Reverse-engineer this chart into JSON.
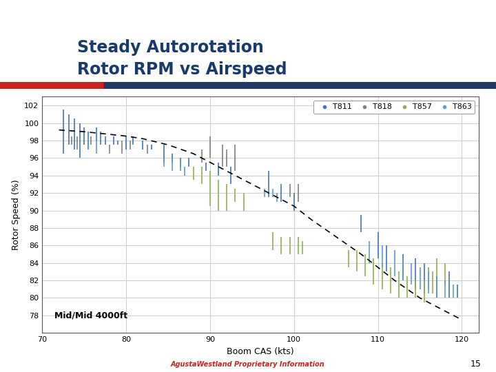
{
  "title_line1": "Steady Autorotation",
  "title_line2": "Rotor RPM vs Airspeed",
  "xlabel": "Boom CAS (kts)",
  "ylabel": "Rotor Speed (%)",
  "xlim": [
    70,
    122
  ],
  "ylim": [
    76,
    103
  ],
  "xticks": [
    70,
    80,
    90,
    100,
    110,
    120
  ],
  "yticks": [
    78,
    80,
    82,
    84,
    86,
    88,
    90,
    92,
    94,
    96,
    98,
    100,
    102
  ],
  "annotation": "Mid/Mid 4000ft",
  "footer": "AgustaWestland Proprietary Information",
  "page_number": "15",
  "bg_color": "#ffffff",
  "plot_bg_color": "#ffffff",
  "grid_color": "#cccccc",
  "title_color": "#1a3a6b",
  "c_T811": "#4472c4",
  "c_T818": "#808080",
  "c_T857": "#8db04f",
  "c_T863": "#5b9bd5",
  "dashed_curve": {
    "x": [
      72,
      75,
      78,
      80,
      82,
      85,
      88,
      90,
      92,
      95,
      98,
      100,
      102,
      105,
      108,
      110,
      112,
      115,
      118,
      120
    ],
    "y": [
      99.2,
      99.0,
      98.7,
      98.5,
      98.2,
      97.5,
      96.5,
      95.5,
      94.5,
      93.0,
      91.5,
      90.5,
      89.0,
      87.0,
      85.0,
      83.5,
      82.0,
      80.0,
      78.5,
      77.5
    ]
  },
  "T811_data": [
    {
      "x": 72.5,
      "ymin": 96.5,
      "ymax": 101.5
    },
    {
      "x": 73.2,
      "ymin": 97.5,
      "ymax": 101.0
    },
    {
      "x": 73.8,
      "ymin": 97.0,
      "ymax": 100.5
    },
    {
      "x": 74.5,
      "ymin": 96.0,
      "ymax": 100.0
    },
    {
      "x": 75.0,
      "ymin": 97.5,
      "ymax": 99.5
    },
    {
      "x": 75.5,
      "ymin": 97.0,
      "ymax": 99.0
    },
    {
      "x": 76.5,
      "ymin": 98.0,
      "ymax": 99.5
    },
    {
      "x": 77.0,
      "ymin": 97.5,
      "ymax": 99.0
    },
    {
      "x": 77.5,
      "ymin": 97.5,
      "ymax": 98.5
    },
    {
      "x": 78.5,
      "ymin": 97.5,
      "ymax": 98.5
    },
    {
      "x": 79.0,
      "ymin": 97.5,
      "ymax": 98.0
    },
    {
      "x": 80.0,
      "ymin": 97.0,
      "ymax": 98.5
    },
    {
      "x": 80.8,
      "ymin": 97.5,
      "ymax": 98.5
    },
    {
      "x": 82.0,
      "ymin": 97.0,
      "ymax": 98.0
    },
    {
      "x": 83.0,
      "ymin": 97.0,
      "ymax": 97.5
    },
    {
      "x": 84.5,
      "ymin": 95.5,
      "ymax": 97.5
    },
    {
      "x": 85.5,
      "ymin": 95.5,
      "ymax": 96.5
    },
    {
      "x": 86.5,
      "ymin": 95.0,
      "ymax": 96.0
    },
    {
      "x": 87.5,
      "ymin": 95.0,
      "ymax": 96.0
    },
    {
      "x": 89.5,
      "ymin": 94.5,
      "ymax": 95.5
    },
    {
      "x": 91.0,
      "ymin": 94.0,
      "ymax": 95.5
    },
    {
      "x": 92.5,
      "ymin": 93.0,
      "ymax": 95.0
    },
    {
      "x": 97.0,
      "ymin": 91.5,
      "ymax": 94.5
    },
    {
      "x": 98.5,
      "ymin": 91.0,
      "ymax": 93.0
    },
    {
      "x": 100.0,
      "ymin": 90.0,
      "ymax": 92.0
    },
    {
      "x": 108.0,
      "ymin": 87.5,
      "ymax": 89.5
    },
    {
      "x": 110.0,
      "ymin": 84.5,
      "ymax": 87.5
    },
    {
      "x": 111.0,
      "ymin": 83.0,
      "ymax": 86.0
    },
    {
      "x": 113.0,
      "ymin": 82.0,
      "ymax": 85.0
    },
    {
      "x": 114.5,
      "ymin": 81.0,
      "ymax": 84.5
    },
    {
      "x": 115.5,
      "ymin": 80.5,
      "ymax": 84.0
    },
    {
      "x": 117.0,
      "ymin": 80.0,
      "ymax": 82.5
    },
    {
      "x": 118.5,
      "ymin": 80.0,
      "ymax": 83.0
    },
    {
      "x": 119.5,
      "ymin": 80.0,
      "ymax": 81.5
    }
  ],
  "T818_data": [
    {
      "x": 73.5,
      "ymin": 97.5,
      "ymax": 98.5
    },
    {
      "x": 74.2,
      "ymin": 97.0,
      "ymax": 98.5
    },
    {
      "x": 75.8,
      "ymin": 97.5,
      "ymax": 98.5
    },
    {
      "x": 78.0,
      "ymin": 96.5,
      "ymax": 97.5
    },
    {
      "x": 79.5,
      "ymin": 96.5,
      "ymax": 98.0
    },
    {
      "x": 80.5,
      "ymin": 97.0,
      "ymax": 98.0
    },
    {
      "x": 82.5,
      "ymin": 96.5,
      "ymax": 97.5
    },
    {
      "x": 89.0,
      "ymin": 95.5,
      "ymax": 97.0
    },
    {
      "x": 90.0,
      "ymin": 96.0,
      "ymax": 98.5
    },
    {
      "x": 91.5,
      "ymin": 95.0,
      "ymax": 97.5
    },
    {
      "x": 92.0,
      "ymin": 95.0,
      "ymax": 97.0
    },
    {
      "x": 93.0,
      "ymin": 94.5,
      "ymax": 97.5
    },
    {
      "x": 99.5,
      "ymin": 91.5,
      "ymax": 93.0
    },
    {
      "x": 100.5,
      "ymin": 91.0,
      "ymax": 93.0
    }
  ],
  "T857_data": [
    {
      "x": 88.0,
      "ymin": 93.5,
      "ymax": 95.0
    },
    {
      "x": 89.0,
      "ymin": 93.0,
      "ymax": 95.0
    },
    {
      "x": 90.0,
      "ymin": 90.5,
      "ymax": 94.5
    },
    {
      "x": 91.0,
      "ymin": 90.0,
      "ymax": 93.5
    },
    {
      "x": 92.0,
      "ymin": 90.0,
      "ymax": 93.0
    },
    {
      "x": 93.0,
      "ymin": 91.0,
      "ymax": 92.5
    },
    {
      "x": 94.0,
      "ymin": 90.0,
      "ymax": 92.0
    },
    {
      "x": 97.5,
      "ymin": 85.5,
      "ymax": 87.5
    },
    {
      "x": 98.5,
      "ymin": 85.0,
      "ymax": 87.0
    },
    {
      "x": 99.5,
      "ymin": 85.0,
      "ymax": 87.0
    },
    {
      "x": 100.5,
      "ymin": 85.0,
      "ymax": 87.0
    },
    {
      "x": 101.0,
      "ymin": 85.0,
      "ymax": 86.5
    },
    {
      "x": 106.5,
      "ymin": 83.5,
      "ymax": 85.5
    },
    {
      "x": 107.5,
      "ymin": 83.0,
      "ymax": 85.5
    },
    {
      "x": 108.5,
      "ymin": 82.5,
      "ymax": 85.0
    },
    {
      "x": 109.5,
      "ymin": 81.5,
      "ymax": 84.5
    },
    {
      "x": 110.5,
      "ymin": 81.0,
      "ymax": 84.0
    },
    {
      "x": 111.5,
      "ymin": 80.5,
      "ymax": 83.5
    },
    {
      "x": 112.5,
      "ymin": 80.0,
      "ymax": 83.0
    },
    {
      "x": 113.5,
      "ymin": 80.0,
      "ymax": 82.5
    },
    {
      "x": 114.5,
      "ymin": 80.0,
      "ymax": 82.0
    },
    {
      "x": 115.5,
      "ymin": 79.5,
      "ymax": 82.0
    },
    {
      "x": 116.0,
      "ymin": 81.0,
      "ymax": 83.5
    },
    {
      "x": 116.5,
      "ymin": 80.5,
      "ymax": 83.0
    },
    {
      "x": 117.0,
      "ymin": 82.0,
      "ymax": 84.5
    },
    {
      "x": 118.0,
      "ymin": 81.5,
      "ymax": 84.0
    }
  ],
  "T863_data": [
    {
      "x": 75.5,
      "ymin": 97.0,
      "ymax": 98.5
    },
    {
      "x": 76.5,
      "ymin": 96.5,
      "ymax": 98.0
    },
    {
      "x": 84.5,
      "ymin": 95.0,
      "ymax": 96.0
    },
    {
      "x": 85.5,
      "ymin": 94.5,
      "ymax": 96.0
    },
    {
      "x": 86.5,
      "ymin": 94.5,
      "ymax": 95.5
    },
    {
      "x": 87.0,
      "ymin": 94.0,
      "ymax": 95.0
    },
    {
      "x": 96.5,
      "ymin": 91.5,
      "ymax": 92.5
    },
    {
      "x": 97.5,
      "ymin": 91.5,
      "ymax": 92.5
    },
    {
      "x": 98.0,
      "ymin": 91.0,
      "ymax": 92.0
    },
    {
      "x": 109.0,
      "ymin": 84.0,
      "ymax": 86.5
    },
    {
      "x": 110.5,
      "ymin": 83.5,
      "ymax": 86.0
    },
    {
      "x": 112.0,
      "ymin": 82.5,
      "ymax": 85.5
    },
    {
      "x": 113.0,
      "ymin": 82.0,
      "ymax": 84.5
    },
    {
      "x": 114.0,
      "ymin": 81.5,
      "ymax": 84.0
    },
    {
      "x": 115.0,
      "ymin": 81.0,
      "ymax": 83.5
    },
    {
      "x": 116.0,
      "ymin": 80.5,
      "ymax": 83.0
    },
    {
      "x": 117.0,
      "ymin": 80.0,
      "ymax": 82.5
    },
    {
      "x": 118.0,
      "ymin": 80.0,
      "ymax": 82.0
    },
    {
      "x": 119.0,
      "ymin": 80.0,
      "ymax": 81.5
    }
  ]
}
